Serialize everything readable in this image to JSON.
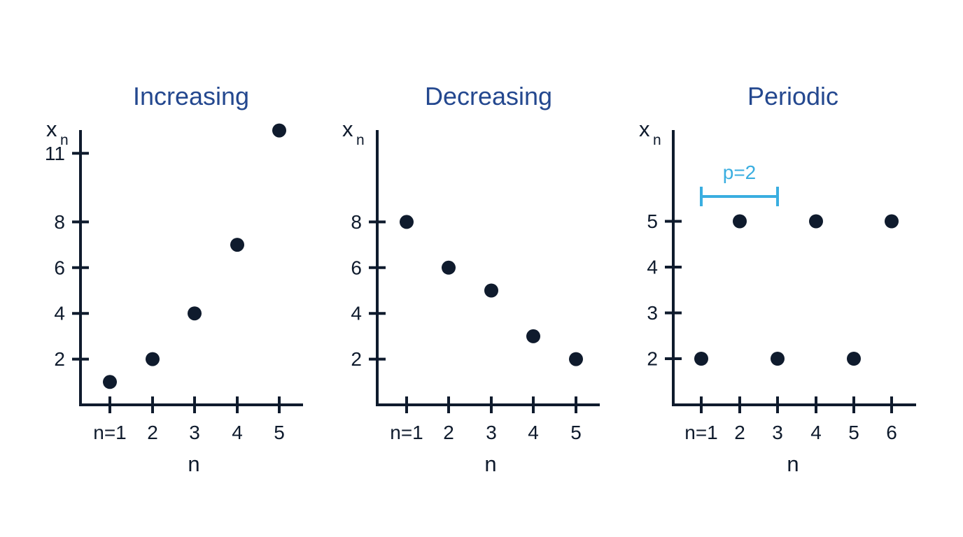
{
  "colors": {
    "title": "#24488f",
    "ink": "#0f1b2d",
    "accent": "#3aaee0",
    "background": "#ffffff"
  },
  "chart_data": [
    {
      "type": "scatter",
      "title": "Increasing",
      "xlabel": "n",
      "ylabel": {
        "base": "x",
        "sub": "n"
      },
      "x": [
        1,
        2,
        3,
        4,
        5
      ],
      "y": [
        1,
        2,
        4,
        7,
        12
      ],
      "x_tick_labels": [
        "n=1",
        "2",
        "3",
        "4",
        "5"
      ],
      "y_ticks": [
        2,
        4,
        6,
        8,
        11
      ],
      "y_tick_labels": [
        "2",
        "4",
        "6",
        "8",
        "11"
      ],
      "grid": false,
      "legend": "none"
    },
    {
      "type": "scatter",
      "title": "Decreasing",
      "xlabel": "n",
      "ylabel": {
        "base": "x",
        "sub": "n"
      },
      "x": [
        1,
        2,
        3,
        4,
        5
      ],
      "y": [
        8,
        6,
        5,
        3,
        2
      ],
      "x_tick_labels": [
        "n=1",
        "2",
        "3",
        "4",
        "5"
      ],
      "y_ticks": [
        2,
        4,
        6,
        8
      ],
      "y_tick_labels": [
        "2",
        "4",
        "6",
        "8"
      ],
      "grid": false,
      "legend": "none"
    },
    {
      "type": "scatter",
      "title": "Periodic",
      "xlabel": "n",
      "ylabel": {
        "base": "x",
        "sub": "n"
      },
      "x": [
        1,
        2,
        3,
        4,
        5,
        6
      ],
      "y": [
        2,
        5,
        2,
        5,
        2,
        5
      ],
      "x_tick_labels": [
        "n=1",
        "2",
        "3",
        "4",
        "5",
        "6"
      ],
      "y_ticks": [
        2,
        3,
        4,
        5
      ],
      "y_tick_labels": [
        "2",
        "3",
        "4",
        "5"
      ],
      "grid": false,
      "legend": "none",
      "annotation": {
        "text": "p=2",
        "from_x": 1,
        "to_x": 3
      }
    }
  ]
}
